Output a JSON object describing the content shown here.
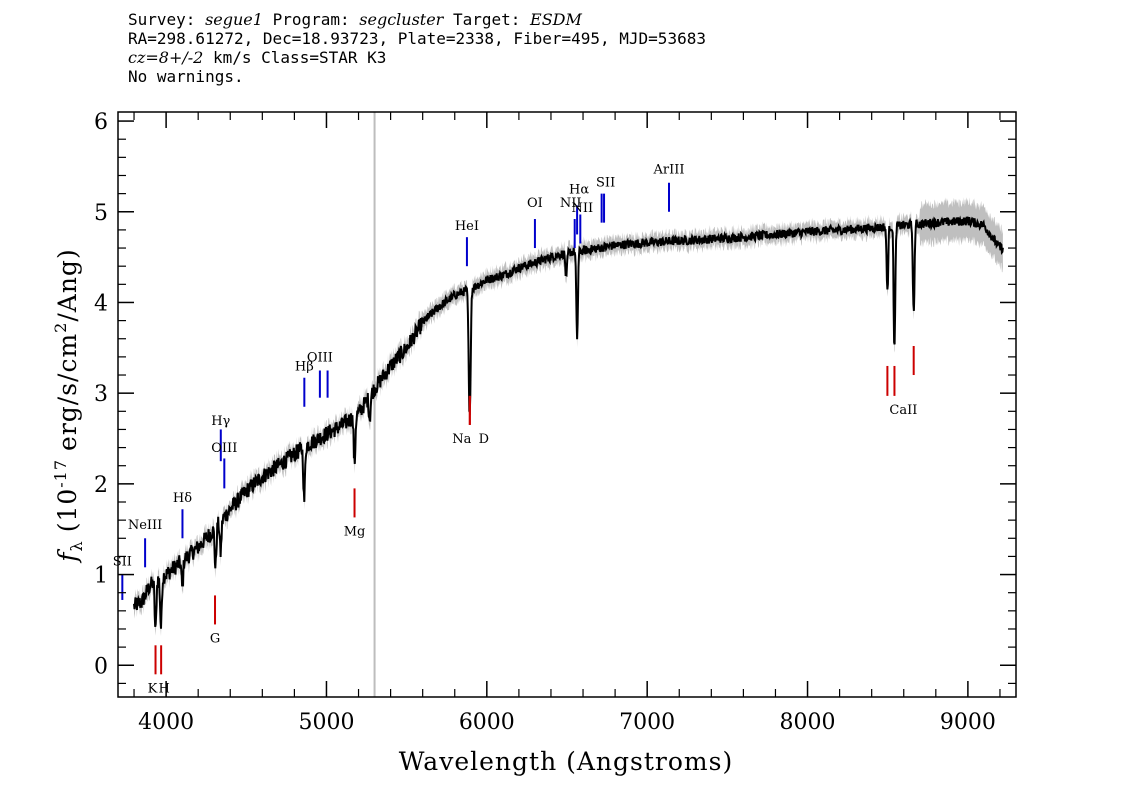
{
  "header": {
    "survey_label": "Survey: ",
    "survey_value": "segue1",
    "program_label": " Program: ",
    "program_value": "segcluster",
    "target_label": " Target: ",
    "target_value": "ESDM",
    "line2": "RA=298.61272, Dec=18.93723, Plate=2338, Fiber=495, MJD=53683",
    "redshift_value": "cz=8+/-2",
    "redshift_unit": " km/s Class=STAR K3",
    "line4": "No warnings."
  },
  "chart_data": {
    "type": "line",
    "title": "",
    "xlabel": "Wavelength (Angstroms)",
    "ylabel_symbol": "f",
    "ylabel_subscript": "λ",
    "ylabel_text": "(10",
    "ylabel_exp": "-17",
    "ylabel_text2": "erg/s/cm",
    "ylabel_exp2": "2",
    "ylabel_text3": "/Ang)",
    "xlim": [
      3700,
      9300
    ],
    "ylim": [
      -0.35,
      6.1
    ],
    "xticks": [
      4000,
      5000,
      6000,
      7000,
      8000,
      9000
    ],
    "xtick_labels": [
      "4000",
      "5000",
      "6000",
      "7000",
      "8000",
      "9000"
    ],
    "yticks": [
      0,
      1,
      2,
      3,
      4,
      5,
      6
    ],
    "ytick_labels": [
      "0",
      "1",
      "2",
      "3",
      "4",
      "5",
      "6"
    ],
    "reference_line_x": 5300,
    "reference_line_color": "#bdbdbd",
    "spectrum_color": "#000000",
    "error_color": "#bfbfbf",
    "emission_color": "#0000cc",
    "absorption_color": "#cc0000",
    "continuum": [
      [
        3800,
        0.65
      ],
      [
        3850,
        0.7
      ],
      [
        3900,
        0.88
      ],
      [
        3950,
        0.95
      ],
      [
        4000,
        1.0
      ],
      [
        4100,
        1.15
      ],
      [
        4200,
        1.3
      ],
      [
        4300,
        1.5
      ],
      [
        4400,
        1.72
      ],
      [
        4500,
        1.92
      ],
      [
        4600,
        2.08
      ],
      [
        4700,
        2.2
      ],
      [
        4800,
        2.33
      ],
      [
        4900,
        2.45
      ],
      [
        5000,
        2.55
      ],
      [
        5100,
        2.65
      ],
      [
        5200,
        2.78
      ],
      [
        5300,
        3.05
      ],
      [
        5400,
        3.3
      ],
      [
        5500,
        3.5
      ],
      [
        5600,
        3.78
      ],
      [
        5700,
        3.95
      ],
      [
        5800,
        4.08
      ],
      [
        5900,
        4.15
      ],
      [
        6000,
        4.25
      ],
      [
        6100,
        4.3
      ],
      [
        6200,
        4.38
      ],
      [
        6300,
        4.44
      ],
      [
        6400,
        4.5
      ],
      [
        6500,
        4.55
      ],
      [
        6600,
        4.57
      ],
      [
        6700,
        4.6
      ],
      [
        6800,
        4.63
      ],
      [
        7000,
        4.66
      ],
      [
        7200,
        4.68
      ],
      [
        7400,
        4.7
      ],
      [
        7600,
        4.72
      ],
      [
        7800,
        4.75
      ],
      [
        8000,
        4.78
      ],
      [
        8200,
        4.8
      ],
      [
        8400,
        4.82
      ],
      [
        8600,
        4.85
      ],
      [
        8800,
        4.88
      ],
      [
        9000,
        4.9
      ],
      [
        9100,
        4.85
      ],
      [
        9200,
        4.6
      ]
    ],
    "absorption_dips": [
      [
        3934,
        0.55
      ],
      [
        3968,
        0.55
      ],
      [
        4101,
        0.3
      ],
      [
        4308,
        0.45
      ],
      [
        4340,
        0.35
      ],
      [
        4861,
        0.6
      ],
      [
        5175,
        0.55
      ],
      [
        5270,
        0.25
      ],
      [
        5890,
        0.9
      ],
      [
        5896,
        0.8
      ],
      [
        6563,
        0.95
      ],
      [
        6495,
        0.3
      ],
      [
        8498,
        0.7
      ],
      [
        8542,
        1.35
      ],
      [
        8662,
        1.0
      ]
    ],
    "emission_lines": [
      {
        "label": "SII",
        "x": 3727,
        "y0": 0.72,
        "y1": 1.0,
        "label_y": 1.1
      },
      {
        "label": "NeIII",
        "x": 3869,
        "y0": 1.08,
        "y1": 1.4,
        "label_y": 1.5
      },
      {
        "label": "Hδ",
        "x": 4102,
        "y0": 1.4,
        "y1": 1.72,
        "label_y": 1.8
      },
      {
        "label": "Hγ",
        "x": 4341,
        "y0": 2.25,
        "y1": 2.6,
        "label_y": 2.65
      },
      {
        "label": "OIII",
        "x": 4363,
        "y0": 1.95,
        "y1": 2.28,
        "label_y": 2.35
      },
      {
        "label": "Hβ",
        "x": 4862,
        "y0": 2.85,
        "y1": 3.17,
        "label_y": 3.25
      },
      {
        "label": "OIII",
        "x": 4959,
        "y0": 2.95,
        "y1": 3.25,
        "label_y": 3.35
      },
      {
        "label": "",
        "x": 5007,
        "y0": 2.95,
        "y1": 3.25,
        "label_y": 3.35
      },
      {
        "label": "HeI",
        "x": 5876,
        "y0": 4.4,
        "y1": 4.72,
        "label_y": 4.8
      },
      {
        "label": "OI",
        "x": 6300,
        "y0": 4.6,
        "y1": 4.92,
        "label_y": 5.05
      },
      {
        "label": "NII",
        "x": 6548,
        "y0": 4.6,
        "y1": 4.92,
        "label_y": 5.05
      },
      {
        "label": "Hα",
        "x": 6563,
        "y0": 4.75,
        "y1": 5.07,
        "label_y": 5.2
      },
      {
        "label": "NII",
        "x": 6583,
        "y0": 4.65,
        "y1": 4.97,
        "label_y": 5.0
      },
      {
        "label": "SII",
        "x": 6716,
        "y0": 4.88,
        "y1": 5.2,
        "label_y": 5.28
      },
      {
        "label": "",
        "x": 6731,
        "y0": 4.88,
        "y1": 5.2,
        "label_y": 5.28
      },
      {
        "label": "ArIII",
        "x": 7136,
        "y0": 5.0,
        "y1": 5.32,
        "label_y": 5.42
      }
    ],
    "absorption_lines": [
      {
        "label": "K",
        "x": 3934,
        "y0": -0.1,
        "y1": 0.22,
        "label_y": -0.3
      },
      {
        "label": "H",
        "x": 3969,
        "y0": -0.1,
        "y1": 0.22,
        "label_y": -0.3
      },
      {
        "label": "G",
        "x": 4305,
        "y0": 0.45,
        "y1": 0.77,
        "label_y": 0.25
      },
      {
        "label": "Mg",
        "x": 5175,
        "y0": 1.63,
        "y1": 1.95,
        "label_y": 1.43
      },
      {
        "label": "Na",
        "x": 5894,
        "y0": 2.65,
        "y1": 2.97,
        "label_y": 2.45
      },
      {
        "label": "D",
        "x": 5894,
        "y0": 2.65,
        "y1": 2.97,
        "label_y": 2.45
      },
      {
        "label": "CaII",
        "x": 8498,
        "y0": 2.97,
        "y1": 3.3,
        "label_y": 2.77
      },
      {
        "label": "",
        "x": 8542,
        "y0": 2.97,
        "y1": 3.3,
        "label_y": 2.77
      },
      {
        "label": "",
        "x": 8662,
        "y0": 3.2,
        "y1": 3.52,
        "label_y": 3.0
      }
    ]
  }
}
